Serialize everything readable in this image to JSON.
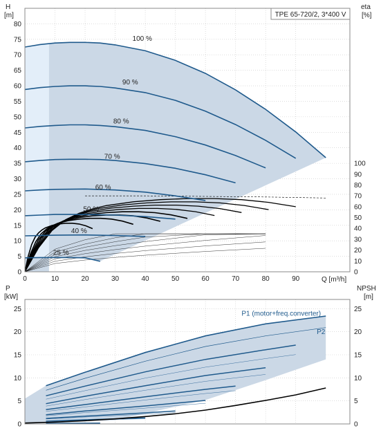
{
  "colors": {
    "envelope_fill": "#cbd8e6",
    "low_flow_fill": "#e3eef9",
    "speed_curve": "#1f5a8c",
    "eff_curve": "#000000",
    "power_line": "#1f5a8c",
    "grid": "#c8c8c8",
    "text": "#222222",
    "p1_label": "#1f5a8c"
  },
  "chart_data": [
    {
      "type": "line",
      "title": "TPE 65-720/2, 3*400 V",
      "ylabel_left": "H",
      "ylabel_left_unit": "[m]",
      "ylabel_right": "eta",
      "ylabel_right_unit": "[%]",
      "xlabel": "Q [m³/h]",
      "xlim": [
        0,
        108
      ],
      "ylim": [
        0,
        85
      ],
      "x_ticks": [
        0,
        10,
        20,
        30,
        40,
        50,
        60,
        70,
        80,
        90
      ],
      "y_ticks": [
        0,
        5,
        10,
        15,
        20,
        25,
        30,
        35,
        40,
        45,
        50,
        55,
        60,
        65,
        70,
        75,
        80
      ],
      "y_right_ticks": [
        "0",
        "10",
        "20",
        "30",
        "40",
        "50",
        "60",
        "70",
        "80",
        "90",
        "100"
      ],
      "grid": true,
      "speed_curves": [
        {
          "label": "100 %",
          "label_at": [
            39,
            74.5
          ],
          "x": [
            0,
            5,
            10,
            15,
            20,
            25,
            30,
            40,
            50,
            60,
            70,
            80,
            90,
            100
          ],
          "y": [
            72.5,
            73.3,
            73.8,
            74,
            74,
            73.8,
            73.2,
            71.3,
            68.2,
            64,
            58.7,
            52.4,
            45.1,
            36.8
          ]
        },
        {
          "label": "90 %",
          "label_at": [
            35,
            60.5
          ],
          "x": [
            0,
            5,
            10,
            15,
            20,
            25,
            30,
            40,
            50,
            60,
            70,
            80,
            90
          ],
          "y": [
            58.8,
            59.4,
            59.8,
            60,
            60,
            59.8,
            59.3,
            57.8,
            55.3,
            51.8,
            47.5,
            42.4,
            36.6
          ]
        },
        {
          "label": "80 %",
          "label_at": [
            32,
            47.8
          ],
          "x": [
            0,
            5,
            10,
            15,
            20,
            25,
            30,
            40,
            50,
            60,
            70,
            80
          ],
          "y": [
            46.4,
            46.9,
            47.2,
            47.4,
            47.4,
            47.2,
            46.8,
            45.6,
            43.6,
            40.9,
            37.5,
            33.5
          ]
        },
        {
          "label": "70 %",
          "label_at": [
            29,
            36.5
          ],
          "x": [
            0,
            5,
            10,
            15,
            20,
            25,
            30,
            40,
            50,
            60,
            70
          ],
          "y": [
            35.5,
            35.9,
            36.2,
            36.3,
            36.3,
            36.2,
            35.9,
            34.9,
            33.4,
            31.3,
            28.7
          ]
        },
        {
          "label": "60 %",
          "label_at": [
            26,
            26.5
          ],
          "x": [
            0,
            5,
            10,
            20,
            30,
            40,
            50,
            60
          ],
          "y": [
            26.1,
            26.4,
            26.6,
            26.7,
            26.4,
            25.7,
            24.5,
            23
          ]
        },
        {
          "label": "50 %",
          "label_at": [
            22,
            19.5
          ],
          "x": [
            0,
            5,
            10,
            20,
            30,
            40,
            50
          ],
          "y": [
            18.1,
            18.3,
            18.5,
            18.5,
            18.3,
            17.8,
            17
          ]
        },
        {
          "label": "40 %",
          "label_at": [
            18,
            12.5
          ],
          "x": [
            0,
            5,
            10,
            20,
            30,
            40
          ],
          "y": [
            11.6,
            11.7,
            11.8,
            11.9,
            11.7,
            11.4
          ]
        },
        {
          "label": "25 %",
          "label_at": [
            12,
            5.5
          ],
          "x": [
            0,
            5,
            10,
            15,
            20,
            25
          ],
          "y": [
            4.5,
            4.6,
            4.6,
            4.6,
            4.5,
            3.4
          ]
        }
      ],
      "efficiency_curve": {
        "note": "values in right-axis units (%)",
        "x": [
          0,
          5,
          10,
          15,
          20,
          25,
          30,
          40,
          50,
          60,
          70,
          80,
          90,
          100
        ],
        "y": [
          0,
          22,
          38,
          48,
          54,
          58,
          61,
          64.5,
          66.5,
          67.5,
          67.5,
          66.5,
          64,
          60
        ]
      }
    },
    {
      "type": "line",
      "ylabel_left": "P",
      "ylabel_left_unit": "[kW]",
      "ylabel_right": "NPSH",
      "ylabel_right_unit": "[m]",
      "xlim": [
        0,
        108
      ],
      "ylim": [
        0,
        27
      ],
      "y_ticks": [
        0,
        5,
        10,
        15,
        20,
        25
      ],
      "grid": true,
      "series": [
        {
          "name": "P1 (motor+freq.converter)",
          "label_at": [
            72,
            23.5
          ],
          "x": [
            7,
            20,
            40,
            60,
            80,
            100
          ],
          "y": [
            8.3,
            11.2,
            15.5,
            19.1,
            21.7,
            23.4
          ]
        },
        {
          "name": "P2",
          "label_at": [
            97,
            19.5
          ],
          "x": [
            7,
            20,
            40,
            60,
            80,
            100
          ],
          "y": [
            7.3,
            9.9,
            13.6,
            16.8,
            19.1,
            20.9
          ]
        }
      ],
      "speed_power_curves": [
        {
          "x": [
            7,
            20,
            40,
            60,
            80,
            90
          ],
          "y": [
            6.1,
            8.2,
            11.3,
            14,
            16.1,
            17.1
          ]
        },
        {
          "x": [
            7,
            20,
            40,
            60,
            80
          ],
          "y": [
            4.4,
            6,
            8.3,
            10.5,
            12.2
          ]
        },
        {
          "x": [
            7,
            20,
            40,
            60,
            70
          ],
          "y": [
            3.1,
            4.2,
            5.9,
            7.5,
            8.2
          ]
        },
        {
          "x": [
            7,
            20,
            40,
            60
          ],
          "y": [
            2,
            2.8,
            3.9,
            5.1
          ]
        },
        {
          "x": [
            7,
            20,
            40,
            50
          ],
          "y": [
            1.2,
            1.7,
            2.4,
            2.8
          ]
        },
        {
          "x": [
            7,
            20,
            40
          ],
          "y": [
            0.6,
            0.9,
            1.3
          ]
        },
        {
          "x": [
            7,
            15,
            25
          ],
          "y": [
            0.1,
            0.15,
            0.2
          ]
        }
      ],
      "npsh_curve": {
        "note": "values in right-axis units (m)",
        "x": [
          0,
          10,
          20,
          30,
          40,
          50,
          60,
          70,
          80,
          90,
          100
        ],
        "y": [
          0.2,
          0.4,
          0.7,
          1.1,
          1.6,
          2.2,
          3,
          4,
          5.1,
          6.3,
          7.8
        ]
      }
    }
  ]
}
